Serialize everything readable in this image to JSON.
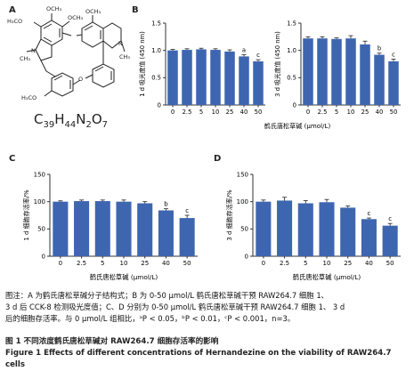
{
  "panel_letters": {
    "a": "A",
    "b": "B",
    "c": "C",
    "d": "D"
  },
  "structure": {
    "labels": {
      "och3_1": "OCH₃",
      "och3_2": "OCH₃",
      "h3co_1": "H₃CO",
      "och3_3": "OCH₃",
      "h3co_2": "H₃CO",
      "ch3_1": "CH₃",
      "ch3_2": "CH₃",
      "n1": "N",
      "n2": "N",
      "o1": "O"
    },
    "formula": {
      "c": "C",
      "c_n": "39",
      "h": "H",
      "h_n": "44",
      "n": "N",
      "n_n": "2",
      "o": "O",
      "o_n": "7"
    }
  },
  "chart_data": [
    {
      "id": "B1",
      "type": "bar",
      "ylabel": "1 d 吸光度值 (450 nm)",
      "xlabel": "",
      "categories": [
        "0",
        "2.5",
        "5",
        "10",
        "25",
        "40",
        "50"
      ],
      "values": [
        1.0,
        1.01,
        1.02,
        1.01,
        0.98,
        0.89,
        0.8
      ],
      "errors": [
        0.02,
        0.02,
        0.02,
        0.02,
        0.03,
        0.03,
        0.03
      ],
      "annotations": [
        "",
        "",
        "",
        "",
        "",
        "a",
        "c"
      ],
      "ylim": [
        0,
        1.5
      ],
      "yticks": [
        "0",
        "0.5",
        "1.0",
        "1.5"
      ]
    },
    {
      "id": "B2",
      "type": "bar",
      "ylabel": "3 d 吸光度值 (450 nm)",
      "xlabel": "鹤氏唐松草碱 (μmol/L)",
      "categories": [
        "0",
        "2.5",
        "5",
        "10",
        "25",
        "40",
        "50"
      ],
      "values": [
        1.22,
        1.22,
        1.21,
        1.22,
        1.11,
        0.92,
        0.8
      ],
      "errors": [
        0.03,
        0.03,
        0.02,
        0.05,
        0.06,
        0.03,
        0.04
      ],
      "annotations": [
        "",
        "",
        "",
        "",
        "",
        "b",
        "c"
      ],
      "ylim": [
        0,
        1.5
      ],
      "yticks": [
        "0",
        "0.5",
        "1.0",
        "1.5"
      ]
    },
    {
      "id": "C",
      "type": "bar",
      "ylabel": "1 d 细胞存活率/%",
      "xlabel": "鹤氏唐松草碱 (μmol/L)",
      "categories": [
        "0",
        "2.5",
        "5",
        "10",
        "25",
        "40",
        "50"
      ],
      "values": [
        100,
        101,
        101,
        100,
        97,
        84,
        70
      ],
      "errors": [
        1.5,
        2,
        2,
        3,
        3,
        3,
        5
      ],
      "annotations": [
        "",
        "",
        "",
        "",
        "",
        "b",
        "c"
      ],
      "ylim": [
        0,
        150
      ],
      "yticks": [
        "0",
        "50",
        "100",
        "150"
      ]
    },
    {
      "id": "D",
      "type": "bar",
      "ylabel": "3 d 细胞存活率/%",
      "xlabel": "鹤氏唐松草碱 (μmol/L)",
      "categories": [
        "0",
        "2.5",
        "5",
        "10",
        "25",
        "40",
        "50"
      ],
      "values": [
        100,
        102,
        97,
        99,
        89,
        68,
        56
      ],
      "errors": [
        3,
        6,
        5,
        5,
        3,
        2,
        4
      ],
      "annotations": [
        "",
        "",
        "",
        "",
        "",
        "c",
        "c"
      ],
      "ylim": [
        0,
        150
      ],
      "yticks": [
        "0",
        "50",
        "100",
        "150"
      ]
    }
  ],
  "caption": {
    "line1": "图注：A 为鹤氏唐松草碱分子结构式；B 为 0-50 μmol/L 鹤氏唐松草碱干预 RAW264.7 细胞 1、",
    "line2": "3 d 后 CCK-8 检测吸光度值；C、D 分别为 0-50 μmol/L 鹤氏唐松草碱干预 RAW264.7 细胞 1、 3 d",
    "line3": "后的细胞存活率。与 0 μmol/L 组相比，ᵃP < 0.05，ᵇP < 0.01，ᶜP < 0.001，n=3。"
  },
  "figure_title": {
    "cn": "图 1  不同浓度鹤氏唐松草碱对 RAW264.7 细胞存活率的影响",
    "en": "Figure 1  Effects of different concentrations of Hernandezine on the viability of RAW264.7 cells"
  },
  "colors": {
    "bar": "#3e66b0",
    "axis": "#333333",
    "error": "#222222"
  }
}
